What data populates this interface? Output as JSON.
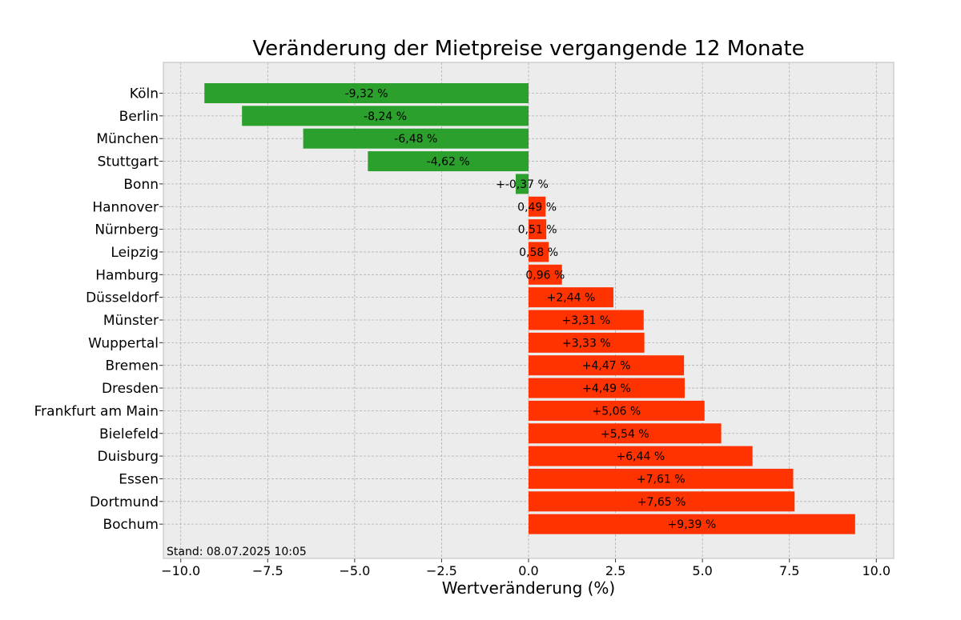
{
  "chart_data": {
    "type": "bar",
    "orientation": "horizontal",
    "title": "Veränderung der Mietpreise vergangende 12 Monate",
    "xlabel": "Wertveränderung (%)",
    "ylabel": "",
    "xlim": [
      -10.5,
      10.5
    ],
    "x_ticks": [
      -10.0,
      -7.5,
      -5.0,
      -2.5,
      0.0,
      2.5,
      5.0,
      7.5,
      10.0
    ],
    "x_tick_labels": [
      "−10.0",
      "−7.5",
      "−5.0",
      "−2.5",
      "0.0",
      "2.5",
      "5.0",
      "7.5",
      "10.0"
    ],
    "grid": true,
    "categories": [
      "Köln",
      "Berlin",
      "München",
      "Stuttgart",
      "Bonn",
      "Hannover",
      "Nürnberg",
      "Leipzig",
      "Hamburg",
      "Düsseldorf",
      "Münster",
      "Wuppertal",
      "Bremen",
      "Dresden",
      "Frankfurt am Main",
      "Bielefeld",
      "Duisburg",
      "Essen",
      "Dortmund",
      "Bochum"
    ],
    "values": [
      -9.32,
      -8.24,
      -6.48,
      -4.62,
      -0.37,
      0.49,
      0.51,
      0.58,
      0.96,
      2.44,
      3.31,
      3.33,
      4.47,
      4.49,
      5.06,
      5.54,
      6.44,
      7.61,
      7.65,
      9.39
    ],
    "data_labels": [
      "-9,32 %",
      "-8,24 %",
      "-6,48 %",
      "-4,62 %",
      "+-0,37 %",
      "0,49 %",
      "0,51 %",
      "0,58 %",
      "0,96 %",
      "+2,44 %",
      "+3,31 %",
      "+3,33 %",
      "+4,47 %",
      "+4,49 %",
      "+5,06 %",
      "+5,54 %",
      "+6,44 %",
      "+7,61 %",
      "+7,65 %",
      "+9,39 %"
    ],
    "colors": {
      "negative": "#2ca02c",
      "positive": "#ff3300"
    },
    "annotation": "Stand: 08.07.2025 10:05"
  },
  "colors": {
    "plot_background": "#ececec",
    "grid": "#b0b0b0",
    "frame": "#bcbcbc"
  }
}
